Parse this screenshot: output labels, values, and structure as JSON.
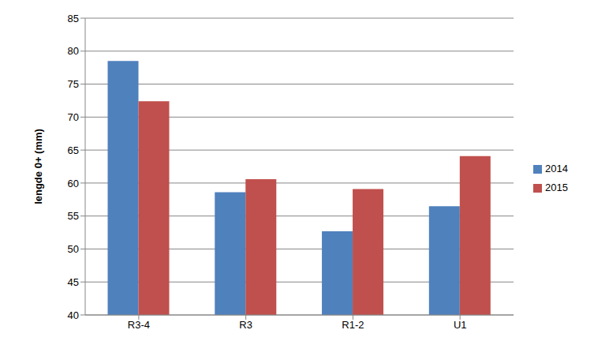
{
  "chart_data": {
    "type": "bar",
    "y_label": "lengde 0+ (mm)",
    "categories": [
      "R3-4",
      "R3",
      "R1-2",
      "U1"
    ],
    "series": [
      {
        "name": "2014",
        "color": "#4f81bd",
        "values": [
          78.5,
          58.6,
          52.7,
          56.5
        ]
      },
      {
        "name": "2015",
        "color": "#c0504d",
        "values": [
          72.4,
          60.6,
          59.1,
          64.1
        ]
      }
    ],
    "ylim": [
      40,
      85
    ],
    "yticks": [
      40,
      45,
      50,
      55,
      60,
      65,
      70,
      75,
      80,
      85
    ],
    "grid": true,
    "legend": "right"
  }
}
